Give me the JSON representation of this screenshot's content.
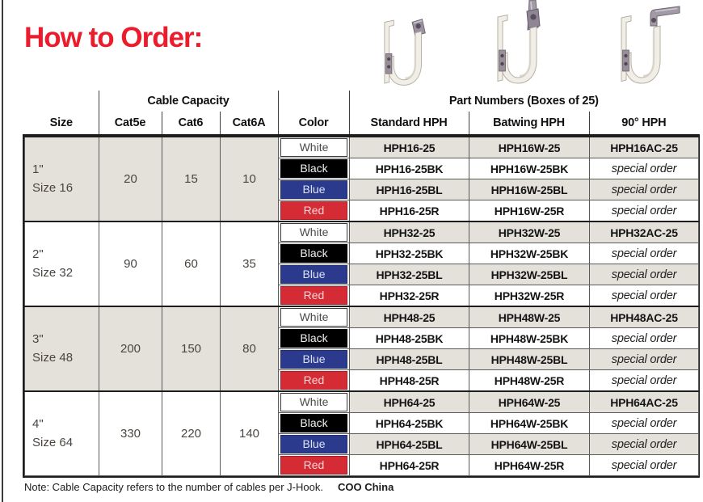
{
  "title": "How to Order:",
  "colors": {
    "brand_red": "#ec1c2d",
    "row_shading": "#e4e1da",
    "swatch_blue": "#2b3a8c",
    "swatch_red": "#d42b35"
  },
  "header": {
    "size": "Size",
    "cable_capacity": "Cable Capacity",
    "cat5e": "Cat5e",
    "cat6": "Cat6",
    "cat6a": "Cat6A",
    "color": "Color",
    "part_numbers": "Part Numbers (Boxes of 25)",
    "standard": "Standard HPH",
    "batwing": "Batwing HPH",
    "deg90": "90° HPH"
  },
  "product_photos": [
    {
      "label": "standard-hph-hook-photo"
    },
    {
      "label": "batwing-hph-hook-photo"
    },
    {
      "label": "90-degree-hph-hook-photo"
    }
  ],
  "swatches": {
    "White": {
      "bg": "#ffffff",
      "fg": "#4a4a4a",
      "border": "#3a3a3a"
    },
    "Black": {
      "bg": "#000000",
      "fg": "#f2f2f2",
      "border": "#000000"
    },
    "Blue": {
      "bg": "#2b3a8c",
      "fg": "#dde3f3",
      "border": "#222e74"
    },
    "Red": {
      "bg": "#d42b35",
      "fg": "#f6d6d8",
      "border": "#ad1f28"
    }
  },
  "groups": [
    {
      "size_line1": "1\"",
      "size_line2": "Size 16",
      "cat5e": "20",
      "cat6": "15",
      "cat6a": "10",
      "rows": [
        {
          "color": "White",
          "standard": "HPH16-25",
          "batwing": "HPH16W-25",
          "deg90": "HPH16AC-25",
          "special": false
        },
        {
          "color": "Black",
          "standard": "HPH16-25BK",
          "batwing": "HPH16W-25BK",
          "deg90": "special order",
          "special": true
        },
        {
          "color": "Blue",
          "standard": "HPH16-25BL",
          "batwing": "HPH16W-25BL",
          "deg90": "special order",
          "special": true
        },
        {
          "color": "Red",
          "standard": "HPH16-25R",
          "batwing": "HPH16W-25R",
          "deg90": "special order",
          "special": true
        }
      ]
    },
    {
      "size_line1": "2\"",
      "size_line2": "Size 32",
      "cat5e": "90",
      "cat6": "60",
      "cat6a": "35",
      "rows": [
        {
          "color": "White",
          "standard": "HPH32-25",
          "batwing": "HPH32W-25",
          "deg90": "HPH32AC-25",
          "special": false
        },
        {
          "color": "Black",
          "standard": "HPH32-25BK",
          "batwing": "HPH32W-25BK",
          "deg90": "special order",
          "special": true
        },
        {
          "color": "Blue",
          "standard": "HPH32-25BL",
          "batwing": "HPH32W-25BL",
          "deg90": "special order",
          "special": true
        },
        {
          "color": "Red",
          "standard": "HPH32-25R",
          "batwing": "HPH32W-25R",
          "deg90": "special order",
          "special": true
        }
      ]
    },
    {
      "size_line1": "3\"",
      "size_line2": "Size 48",
      "cat5e": "200",
      "cat6": "150",
      "cat6a": "80",
      "rows": [
        {
          "color": "White",
          "standard": "HPH48-25",
          "batwing": "HPH48W-25",
          "deg90": "HPH48AC-25",
          "special": false
        },
        {
          "color": "Black",
          "standard": "HPH48-25BK",
          "batwing": "HPH48W-25BK",
          "deg90": "special order",
          "special": true
        },
        {
          "color": "Blue",
          "standard": "HPH48-25BL",
          "batwing": "HPH48W-25BL",
          "deg90": "special order",
          "special": true
        },
        {
          "color": "Red",
          "standard": "HPH48-25R",
          "batwing": "HPH48W-25R",
          "deg90": "special order",
          "special": true
        }
      ]
    },
    {
      "size_line1": "4\"",
      "size_line2": "Size 64",
      "cat5e": "330",
      "cat6": "220",
      "cat6a": "140",
      "rows": [
        {
          "color": "White",
          "standard": "HPH64-25",
          "batwing": "HPH64W-25",
          "deg90": "HPH64AC-25",
          "special": false
        },
        {
          "color": "Black",
          "standard": "HPH64-25BK",
          "batwing": "HPH64W-25BK",
          "deg90": "special order",
          "special": true
        },
        {
          "color": "Blue",
          "standard": "HPH64-25BL",
          "batwing": "HPH64W-25BL",
          "deg90": "special order",
          "special": true
        },
        {
          "color": "Red",
          "standard": "HPH64-25R",
          "batwing": "HPH64W-25R",
          "deg90": "special order",
          "special": true
        }
      ]
    }
  ],
  "note": "Note: Cable Capacity refers to the number of cables per J-Hook.",
  "coo": "COO China"
}
